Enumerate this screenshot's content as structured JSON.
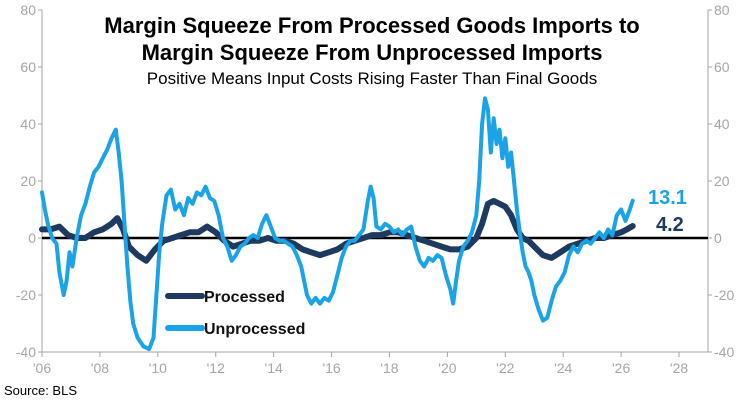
{
  "chart_data": {
    "type": "line",
    "title_line1": "Margin Squeeze From Processed Goods Imports to",
    "title_line2": "Margin Squeeze From Unprocessed Imports",
    "subtitle": "Positive Means Input Costs Rising Faster Than Final Goods",
    "source": "Source: BLS",
    "xlim": [
      2006,
      2029
    ],
    "ylim": [
      -40,
      80
    ],
    "x_ticks": [
      2006,
      2008,
      2010,
      2012,
      2014,
      2016,
      2018,
      2020,
      2022,
      2024,
      2026,
      2028
    ],
    "x_tick_labels": [
      "'06",
      "'08",
      "'10",
      "'12",
      "'14",
      "'16",
      "'18",
      "'20",
      "'22",
      "'24",
      "'26",
      "'28"
    ],
    "y_ticks": [
      -40,
      -20,
      0,
      20,
      40,
      60,
      80
    ],
    "y_tick_labels": [
      "-40",
      "-20",
      "0",
      "20",
      "40",
      "60",
      "80"
    ],
    "zero_line": true,
    "legend_position": "bottom-left",
    "series": [
      {
        "name": "Processed",
        "color": "#1f3a5f",
        "end_label": "4.2",
        "points": [
          [
            2006.0,
            3
          ],
          [
            2006.3,
            3
          ],
          [
            2006.6,
            4
          ],
          [
            2006.9,
            1
          ],
          [
            2007.2,
            0
          ],
          [
            2007.5,
            0
          ],
          [
            2007.8,
            2
          ],
          [
            2008.1,
            3
          ],
          [
            2008.4,
            5
          ],
          [
            2008.6,
            7
          ],
          [
            2008.8,
            3
          ],
          [
            2009.0,
            -3
          ],
          [
            2009.3,
            -6
          ],
          [
            2009.6,
            -8
          ],
          [
            2009.9,
            -4
          ],
          [
            2010.2,
            -1
          ],
          [
            2010.5,
            0
          ],
          [
            2010.8,
            1
          ],
          [
            2011.1,
            2
          ],
          [
            2011.4,
            2
          ],
          [
            2011.7,
            4
          ],
          [
            2012.0,
            2
          ],
          [
            2012.3,
            -1
          ],
          [
            2012.6,
            -3
          ],
          [
            2012.9,
            -2
          ],
          [
            2013.2,
            -1
          ],
          [
            2013.5,
            -1
          ],
          [
            2013.8,
            0
          ],
          [
            2014.1,
            -1
          ],
          [
            2014.4,
            -1
          ],
          [
            2014.7,
            -2
          ],
          [
            2015.0,
            -4
          ],
          [
            2015.3,
            -5
          ],
          [
            2015.6,
            -6
          ],
          [
            2015.9,
            -5
          ],
          [
            2016.2,
            -4
          ],
          [
            2016.5,
            -2
          ],
          [
            2016.8,
            -1
          ],
          [
            2017.1,
            0
          ],
          [
            2017.4,
            1
          ],
          [
            2017.7,
            1
          ],
          [
            2018.0,
            2
          ],
          [
            2018.3,
            2
          ],
          [
            2018.6,
            1
          ],
          [
            2018.9,
            0
          ],
          [
            2019.2,
            -1
          ],
          [
            2019.5,
            -2
          ],
          [
            2019.8,
            -3
          ],
          [
            2020.1,
            -4
          ],
          [
            2020.4,
            -4
          ],
          [
            2020.7,
            -3
          ],
          [
            2021.0,
            0
          ],
          [
            2021.2,
            5
          ],
          [
            2021.4,
            12
          ],
          [
            2021.6,
            13
          ],
          [
            2021.8,
            12
          ],
          [
            2022.0,
            11
          ],
          [
            2022.2,
            8
          ],
          [
            2022.4,
            3
          ],
          [
            2022.6,
            0
          ],
          [
            2022.8,
            -1
          ],
          [
            2023.0,
            -3
          ],
          [
            2023.3,
            -6
          ],
          [
            2023.6,
            -7
          ],
          [
            2023.9,
            -5
          ],
          [
            2024.2,
            -3
          ],
          [
            2024.5,
            -2
          ],
          [
            2024.8,
            -1
          ],
          [
            2025.1,
            0
          ],
          [
            2025.4,
            0
          ],
          [
            2025.7,
            1
          ],
          [
            2026.0,
            2
          ],
          [
            2026.2,
            3
          ],
          [
            2026.4,
            4.2
          ]
        ]
      },
      {
        "name": "Unprocessed",
        "color": "#1aa3e6",
        "end_label": "13.1",
        "points": [
          [
            2006.0,
            16
          ],
          [
            2006.1,
            10
          ],
          [
            2006.2,
            5
          ],
          [
            2006.35,
            0
          ],
          [
            2006.5,
            -2
          ],
          [
            2006.6,
            -12
          ],
          [
            2006.75,
            -20
          ],
          [
            2006.85,
            -15
          ],
          [
            2006.95,
            -5
          ],
          [
            2007.05,
            -10
          ],
          [
            2007.2,
            0
          ],
          [
            2007.35,
            8
          ],
          [
            2007.5,
            12
          ],
          [
            2007.65,
            18
          ],
          [
            2007.8,
            23
          ],
          [
            2007.95,
            25
          ],
          [
            2008.1,
            28
          ],
          [
            2008.25,
            31
          ],
          [
            2008.4,
            35
          ],
          [
            2008.55,
            38
          ],
          [
            2008.65,
            30
          ],
          [
            2008.75,
            20
          ],
          [
            2008.85,
            5
          ],
          [
            2008.95,
            -10
          ],
          [
            2009.05,
            -22
          ],
          [
            2009.15,
            -30
          ],
          [
            2009.3,
            -35
          ],
          [
            2009.5,
            -38
          ],
          [
            2009.7,
            -39
          ],
          [
            2009.85,
            -35
          ],
          [
            2009.95,
            -20
          ],
          [
            2010.05,
            -5
          ],
          [
            2010.15,
            5
          ],
          [
            2010.3,
            15
          ],
          [
            2010.45,
            17
          ],
          [
            2010.6,
            10
          ],
          [
            2010.75,
            12
          ],
          [
            2010.9,
            8
          ],
          [
            2011.05,
            14
          ],
          [
            2011.2,
            12
          ],
          [
            2011.35,
            16
          ],
          [
            2011.5,
            15
          ],
          [
            2011.65,
            18
          ],
          [
            2011.8,
            14
          ],
          [
            2011.95,
            13
          ],
          [
            2012.1,
            8
          ],
          [
            2012.25,
            0
          ],
          [
            2012.4,
            -3
          ],
          [
            2012.55,
            -8
          ],
          [
            2012.7,
            -6
          ],
          [
            2012.85,
            -3
          ],
          [
            2013.0,
            -2
          ],
          [
            2013.15,
            0
          ],
          [
            2013.3,
            1
          ],
          [
            2013.45,
            0
          ],
          [
            2013.6,
            5
          ],
          [
            2013.75,
            8
          ],
          [
            2013.9,
            4
          ],
          [
            2014.05,
            0
          ],
          [
            2014.2,
            -1
          ],
          [
            2014.35,
            -1
          ],
          [
            2014.5,
            -2
          ],
          [
            2014.65,
            -3
          ],
          [
            2014.8,
            -6
          ],
          [
            2014.95,
            -10
          ],
          [
            2015.05,
            -15
          ],
          [
            2015.15,
            -20
          ],
          [
            2015.3,
            -23
          ],
          [
            2015.45,
            -21
          ],
          [
            2015.6,
            -23
          ],
          [
            2015.75,
            -21
          ],
          [
            2015.9,
            -22
          ],
          [
            2016.05,
            -19
          ],
          [
            2016.2,
            -13
          ],
          [
            2016.35,
            -7
          ],
          [
            2016.5,
            -3
          ],
          [
            2016.65,
            -1
          ],
          [
            2016.8,
            -1
          ],
          [
            2016.95,
            1
          ],
          [
            2017.1,
            3
          ],
          [
            2017.25,
            13
          ],
          [
            2017.35,
            18
          ],
          [
            2017.45,
            14
          ],
          [
            2017.55,
            4
          ],
          [
            2017.7,
            3
          ],
          [
            2017.85,
            5
          ],
          [
            2018.0,
            4
          ],
          [
            2018.15,
            2
          ],
          [
            2018.3,
            3
          ],
          [
            2018.45,
            1
          ],
          [
            2018.6,
            3
          ],
          [
            2018.75,
            4
          ],
          [
            2018.9,
            -3
          ],
          [
            2019.05,
            -8
          ],
          [
            2019.2,
            -10
          ],
          [
            2019.35,
            -7
          ],
          [
            2019.5,
            -8
          ],
          [
            2019.65,
            -6
          ],
          [
            2019.8,
            -7
          ],
          [
            2019.95,
            -13
          ],
          [
            2020.1,
            -18
          ],
          [
            2020.2,
            -23
          ],
          [
            2020.3,
            -15
          ],
          [
            2020.4,
            -8
          ],
          [
            2020.55,
            -3
          ],
          [
            2020.7,
            -1
          ],
          [
            2020.85,
            2
          ],
          [
            2021.0,
            8
          ],
          [
            2021.1,
            20
          ],
          [
            2021.2,
            40
          ],
          [
            2021.3,
            49
          ],
          [
            2021.4,
            45
          ],
          [
            2021.5,
            30
          ],
          [
            2021.6,
            42
          ],
          [
            2021.7,
            33
          ],
          [
            2021.8,
            38
          ],
          [
            2021.9,
            28
          ],
          [
            2022.0,
            35
          ],
          [
            2022.1,
            25
          ],
          [
            2022.2,
            30
          ],
          [
            2022.3,
            20
          ],
          [
            2022.4,
            10
          ],
          [
            2022.5,
            2
          ],
          [
            2022.6,
            -5
          ],
          [
            2022.7,
            -10
          ],
          [
            2022.8,
            -12
          ],
          [
            2022.9,
            -15
          ],
          [
            2023.0,
            -20
          ],
          [
            2023.15,
            -25
          ],
          [
            2023.3,
            -29
          ],
          [
            2023.45,
            -28
          ],
          [
            2023.6,
            -22
          ],
          [
            2023.75,
            -17
          ],
          [
            2023.9,
            -15
          ],
          [
            2024.05,
            -12
          ],
          [
            2024.2,
            -6
          ],
          [
            2024.35,
            -3
          ],
          [
            2024.5,
            -5
          ],
          [
            2024.65,
            -2
          ],
          [
            2024.8,
            -1
          ],
          [
            2024.95,
            -2
          ],
          [
            2025.1,
            0
          ],
          [
            2025.25,
            2
          ],
          [
            2025.4,
            0
          ],
          [
            2025.55,
            3
          ],
          [
            2025.7,
            1
          ],
          [
            2025.85,
            8
          ],
          [
            2026.0,
            10
          ],
          [
            2026.15,
            6
          ],
          [
            2026.3,
            10
          ],
          [
            2026.4,
            13.1
          ]
        ]
      }
    ]
  }
}
